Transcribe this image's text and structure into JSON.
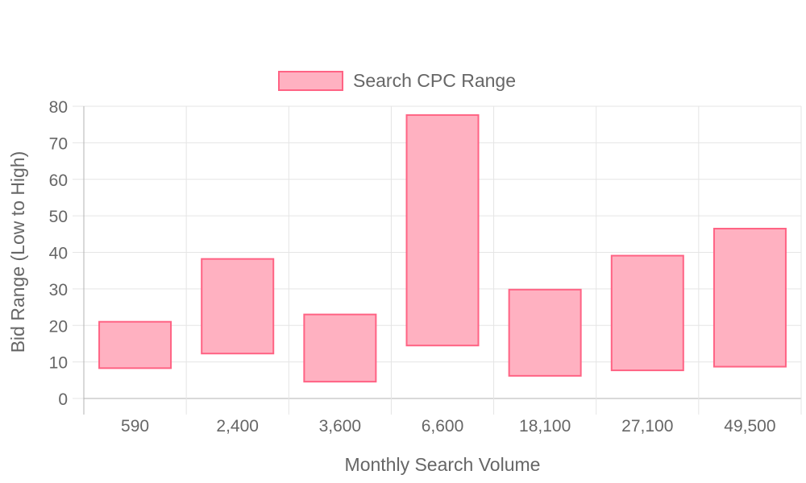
{
  "chart_data": {
    "type": "bar",
    "subtype": "floating-range",
    "categories": [
      "590",
      "2,400",
      "3,600",
      "6,600",
      "18,100",
      "27,100",
      "49,500"
    ],
    "series": [
      {
        "name": "Search CPC Range",
        "ranges": [
          [
            8.3,
            21.0
          ],
          [
            12.3,
            38.2
          ],
          [
            4.6,
            23.0
          ],
          [
            14.5,
            77.6
          ],
          [
            6.2,
            29.8
          ],
          [
            7.7,
            39.1
          ],
          [
            8.7,
            46.5
          ]
        ]
      }
    ],
    "xlabel": "Monthly Search Volume",
    "ylabel": "Bid Range (Low to High)",
    "ylim": [
      0,
      80
    ],
    "yticks": [
      0,
      10,
      20,
      30,
      40,
      50,
      60,
      70,
      80
    ],
    "grid": true,
    "legend_position": "top",
    "colors": {
      "bar_fill": "#ffb1c1",
      "bar_border": "#ff6384",
      "grid": "#e5e5e5",
      "axis": "#b3b3b3",
      "text": "#666666"
    }
  }
}
